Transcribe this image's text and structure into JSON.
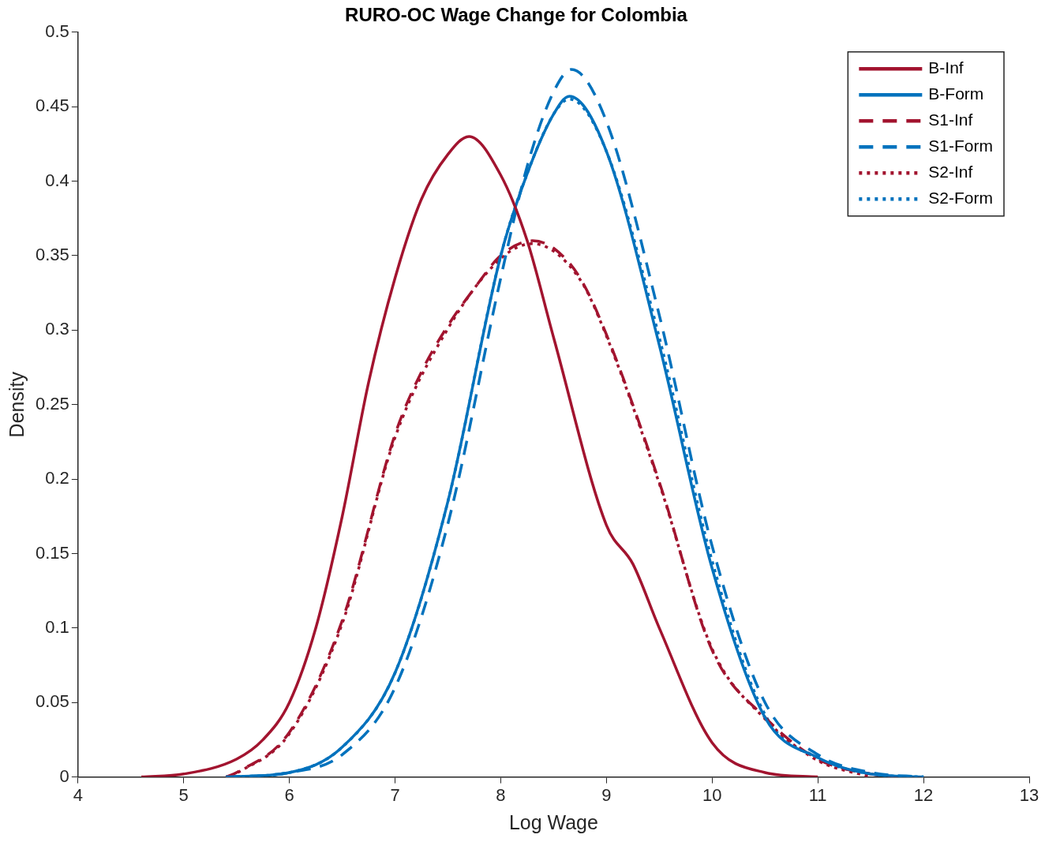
{
  "chart_data": {
    "type": "line",
    "title": "RURO-OC Wage Change for Colombia",
    "xlabel": "Log Wage",
    "ylabel": "Density",
    "xlim": [
      4,
      13
    ],
    "xticks": [
      4,
      5,
      6,
      7,
      8,
      9,
      10,
      11,
      12,
      13
    ],
    "ylim": [
      0,
      0.5
    ],
    "yticks": [
      0,
      0.05,
      0.1,
      0.15,
      0.2,
      0.25,
      0.3,
      0.35,
      0.4,
      0.45,
      0.5
    ],
    "grid": false,
    "legend": "top right",
    "marker": "none",
    "series": [
      {
        "name": "B-Inf",
        "color": "#a2142f",
        "line_style": "solid",
        "x": [
          4.6,
          5.0,
          5.5,
          5.75,
          6.0,
          6.25,
          6.5,
          6.75,
          7.0,
          7.25,
          7.5,
          7.7,
          8.0,
          8.25,
          8.5,
          9.0,
          9.25,
          9.5,
          10.0,
          10.5,
          11.0
        ],
        "values": [
          0,
          0.002,
          0.012,
          0.025,
          0.05,
          0.1,
          0.175,
          0.265,
          0.335,
          0.388,
          0.418,
          0.43,
          0.404,
          0.36,
          0.295,
          0.169,
          0.143,
          0.1,
          0.023,
          0.003,
          0
        ]
      },
      {
        "name": "B-Form",
        "color": "#0072bd",
        "line_style": "solid",
        "x": [
          5.4,
          6.0,
          6.5,
          7.0,
          7.5,
          8.0,
          8.25,
          8.5,
          8.65,
          9.0,
          9.5,
          10.0,
          10.5,
          11.0,
          11.5,
          12.0
        ],
        "values": [
          0,
          0.003,
          0.02,
          0.07,
          0.185,
          0.35,
          0.405,
          0.445,
          0.457,
          0.42,
          0.29,
          0.14,
          0.04,
          0.013,
          0.002,
          0
        ]
      },
      {
        "name": "S1-Inf",
        "color": "#a2142f",
        "line_style": "dashed",
        "x": [
          5.4,
          5.5,
          6.0,
          6.5,
          7.0,
          7.25,
          7.5,
          7.75,
          8.0,
          8.3,
          8.5,
          8.75,
          9.0,
          9.5,
          10.0,
          10.5,
          11.0,
          11.5,
          11.75
        ],
        "values": [
          0,
          0.003,
          0.03,
          0.105,
          0.23,
          0.272,
          0.303,
          0.328,
          0.35,
          0.36,
          0.355,
          0.335,
          0.297,
          0.198,
          0.085,
          0.04,
          0.012,
          0.002,
          0
        ]
      },
      {
        "name": "S1-Form",
        "color": "#0072bd",
        "line_style": "dashed",
        "x": [
          5.4,
          6.0,
          6.5,
          7.0,
          7.5,
          8.0,
          8.25,
          8.5,
          8.67,
          9.0,
          9.5,
          10.0,
          10.5,
          11.0,
          11.5,
          12.0
        ],
        "values": [
          0,
          0.003,
          0.015,
          0.06,
          0.17,
          0.335,
          0.41,
          0.46,
          0.475,
          0.44,
          0.31,
          0.155,
          0.05,
          0.015,
          0.003,
          0
        ]
      },
      {
        "name": "S2-Inf",
        "color": "#a2142f",
        "line_style": "dotted",
        "x": [
          5.45,
          6.0,
          6.5,
          7.0,
          7.5,
          8.0,
          8.3,
          8.75,
          9.0,
          9.5,
          10.0,
          10.5,
          11.0,
          11.5
        ],
        "values": [
          0,
          0.029,
          0.103,
          0.228,
          0.301,
          0.348,
          0.358,
          0.334,
          0.296,
          0.197,
          0.086,
          0.039,
          0.011,
          0
        ]
      },
      {
        "name": "S2-Form",
        "color": "#0072bd",
        "line_style": "dotted",
        "x": [
          5.4,
          6.0,
          6.5,
          7.0,
          7.5,
          8.0,
          8.25,
          8.5,
          8.65,
          9.0,
          9.5,
          10.0,
          10.5,
          11.0,
          11.5,
          12.0
        ],
        "values": [
          0,
          0.003,
          0.02,
          0.07,
          0.185,
          0.35,
          0.405,
          0.445,
          0.455,
          0.42,
          0.295,
          0.145,
          0.042,
          0.013,
          0.002,
          0
        ]
      }
    ]
  }
}
